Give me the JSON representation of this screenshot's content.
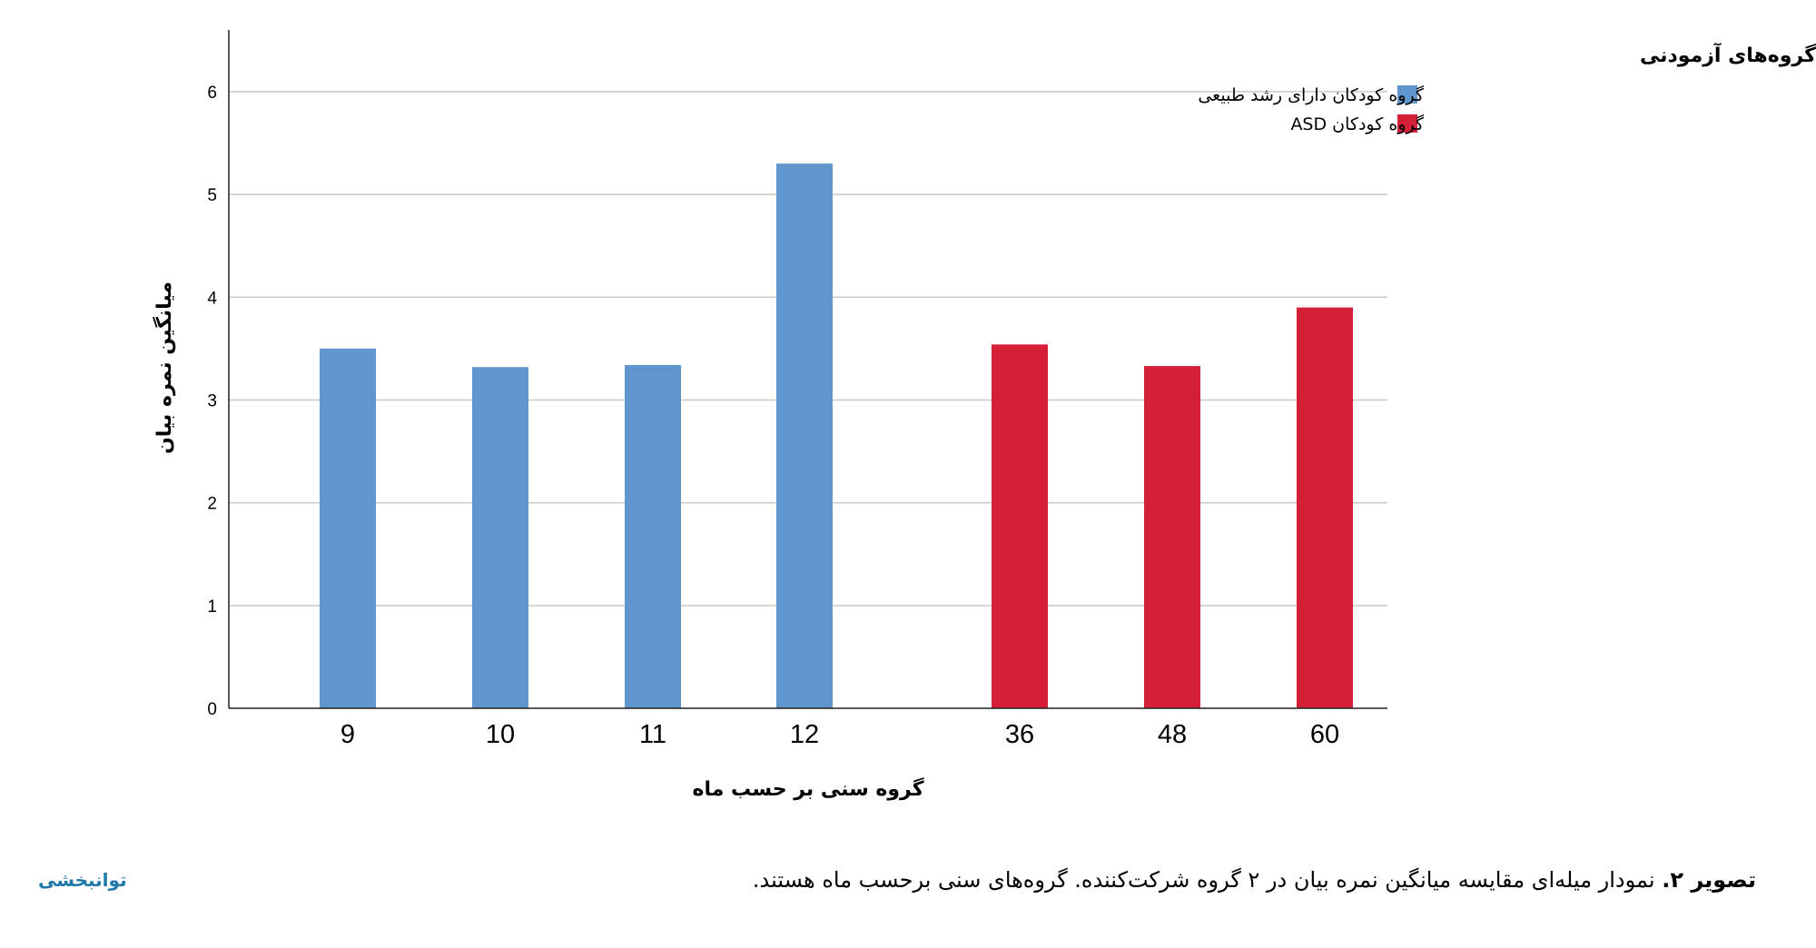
{
  "chart_data": {
    "type": "bar",
    "categories": [
      "9",
      "10",
      "11",
      "12",
      "36",
      "48",
      "60"
    ],
    "values": [
      3.5,
      3.32,
      3.34,
      5.3,
      3.54,
      3.33,
      3.9
    ],
    "bar_groups": [
      "گروه کودکان دارای رشد طبیعی",
      "گروه کودکان دارای رشد طبیعی",
      "گروه کودکان دارای رشد طبیعی",
      "گروه کودکان دارای رشد طبیعی",
      "گروه کودکان ASD",
      "گروه کودکان ASD",
      "گروه کودکان ASD"
    ],
    "series": [
      {
        "name": "گروه کودکان دارای رشد طبیعی",
        "color": "#6095cd"
      },
      {
        "name": "گروه کودکان ASD",
        "color": "#d51f37"
      }
    ],
    "ylabel": "میانگین نمره بیان",
    "xlabel": "گروه سنی بر حسب ماه",
    "legend_title": "گروه‌های آزمودنی",
    "legend_position": "top-right",
    "yticks": [
      "0",
      "1",
      "2",
      "3",
      "4",
      "5",
      "6"
    ],
    "ylim": [
      0,
      6.6
    ],
    "grid": true
  },
  "caption": {
    "lead": "تصویر ۲.",
    "text": " نمودار میله‌ای مقایسه میانگین نمره بیان در ۲ گروه شرکت‌کننده. گروه‌های سنی برحسب ماه هستند."
  },
  "logo_text": "توانبخشی"
}
